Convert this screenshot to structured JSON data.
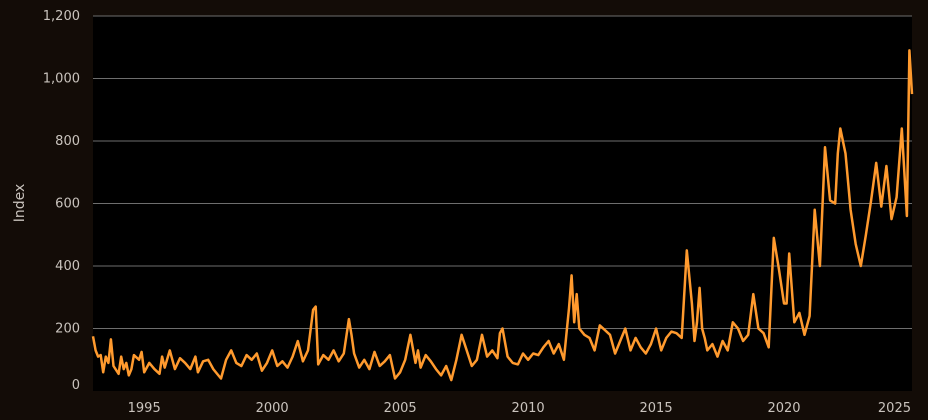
{
  "chart_data": {
    "type": "line",
    "title": "",
    "xlabel": "",
    "ylabel": "Index",
    "xlim": [
      1993.0,
      2025.0
    ],
    "ylim": [
      0,
      1200
    ],
    "yticks": [
      0,
      200,
      400,
      600,
      800,
      1000,
      1200
    ],
    "ytick_labels": [
      "0",
      "200",
      "400",
      "600",
      "800",
      "1,000",
      "1,200"
    ],
    "xticks": [
      1995,
      2000,
      2005,
      2010,
      2015,
      2020,
      2025
    ],
    "xtick_labels": [
      "1995",
      "2000",
      "2005",
      "2010",
      "2015",
      "2020",
      "2025"
    ],
    "grid": "horizontal",
    "legend": "none",
    "colors": {
      "background": "#130c07",
      "plot_background": "#000000",
      "line": "#ff9a2e",
      "grid": "#6e6e6e"
    },
    "series": [
      {
        "name": "",
        "x": [
          1993.0,
          1993.1,
          1993.2,
          1993.3,
          1993.4,
          1993.5,
          1993.6,
          1993.7,
          1993.8,
          1994.0,
          1994.1,
          1994.2,
          1994.3,
          1994.4,
          1994.5,
          1994.6,
          1994.8,
          1994.9,
          1995.0,
          1995.2,
          1995.4,
          1995.6,
          1995.7,
          1995.8,
          1996.0,
          1996.2,
          1996.4,
          1996.6,
          1996.8,
          1997.0,
          1997.1,
          1997.3,
          1997.5,
          1997.7,
          1997.9,
          1998.0,
          1998.2,
          1998.4,
          1998.6,
          1998.8,
          1999.0,
          1999.2,
          1999.4,
          1999.6,
          1999.8,
          2000.0,
          2000.2,
          2000.4,
          2000.6,
          2000.8,
          2001.0,
          2001.2,
          2001.4,
          2001.6,
          2001.7,
          2001.8,
          2002.0,
          2002.2,
          2002.4,
          2002.6,
          2002.8,
          2003.0,
          2003.1,
          2003.2,
          2003.4,
          2003.6,
          2003.8,
          2004.0,
          2004.2,
          2004.4,
          2004.6,
          2004.8,
          2005.0,
          2005.2,
          2005.4,
          2005.6,
          2005.7,
          2005.8,
          2006.0,
          2006.2,
          2006.4,
          2006.6,
          2006.8,
          2007.0,
          2007.2,
          2007.4,
          2007.6,
          2007.8,
          2008.0,
          2008.2,
          2008.4,
          2008.6,
          2008.8,
          2008.9,
          2009.0,
          2009.2,
          2009.4,
          2009.6,
          2009.8,
          2010.0,
          2010.2,
          2010.4,
          2010.6,
          2010.8,
          2011.0,
          2011.2,
          2011.4,
          2011.5,
          2011.6,
          2011.7,
          2011.8,
          2011.9,
          2012.0,
          2012.2,
          2012.4,
          2012.6,
          2012.8,
          2013.0,
          2013.2,
          2013.4,
          2013.6,
          2013.8,
          2014.0,
          2014.2,
          2014.4,
          2014.6,
          2014.8,
          2015.0,
          2015.2,
          2015.4,
          2015.6,
          2015.8,
          2016.0,
          2016.2,
          2016.4,
          2016.5,
          2016.6,
          2016.7,
          2016.8,
          2016.9,
          2017.0,
          2017.2,
          2017.4,
          2017.6,
          2017.8,
          2018.0,
          2018.2,
          2018.4,
          2018.6,
          2018.8,
          2019.0,
          2019.2,
          2019.4,
          2019.6,
          2019.8,
          2020.0,
          2020.1,
          2020.2,
          2020.4,
          2020.6,
          2020.8,
          2021.0,
          2021.2,
          2021.4,
          2021.6,
          2021.8,
          2022.0,
          2022.1,
          2022.2,
          2022.4,
          2022.6,
          2022.8,
          2023.0,
          2023.2,
          2023.4,
          2023.6,
          2023.8,
          2024.0,
          2024.2,
          2024.4,
          2024.6,
          2024.8,
          2024.9,
          2025.0
        ],
        "values": [
          175,
          130,
          110,
          115,
          60,
          110,
          90,
          165,
          80,
          55,
          110,
          70,
          90,
          50,
          70,
          115,
          100,
          125,
          60,
          90,
          70,
          55,
          110,
          75,
          130,
          70,
          105,
          90,
          70,
          110,
          60,
          95,
          100,
          70,
          50,
          40,
          100,
          130,
          90,
          80,
          115,
          100,
          120,
          65,
          90,
          130,
          80,
          95,
          75,
          110,
          160,
          95,
          130,
          260,
          270,
          85,
          115,
          100,
          130,
          95,
          120,
          230,
          180,
          120,
          75,
          100,
          70,
          125,
          80,
          95,
          115,
          40,
          60,
          100,
          180,
          90,
          130,
          75,
          115,
          95,
          70,
          50,
          80,
          35,
          100,
          180,
          130,
          80,
          100,
          180,
          110,
          130,
          105,
          185,
          200,
          110,
          90,
          85,
          120,
          100,
          120,
          115,
          140,
          160,
          120,
          150,
          100,
          185,
          265,
          370,
          220,
          310,
          200,
          180,
          170,
          130,
          210,
          195,
          180,
          120,
          160,
          200,
          130,
          170,
          140,
          120,
          150,
          200,
          130,
          170,
          190,
          185,
          170,
          450,
          280,
          160,
          220,
          330,
          200,
          170,
          130,
          150,
          110,
          160,
          130,
          220,
          200,
          160,
          180,
          310,
          200,
          185,
          140,
          490,
          390,
          280,
          280,
          440,
          220,
          250,
          180,
          240,
          580,
          400,
          780,
          610,
          600,
          760,
          840,
          760,
          580,
          470,
          400,
          500,
          610,
          730,
          590,
          720,
          550,
          620,
          840,
          560,
          1090,
          950
        ]
      }
    ]
  }
}
